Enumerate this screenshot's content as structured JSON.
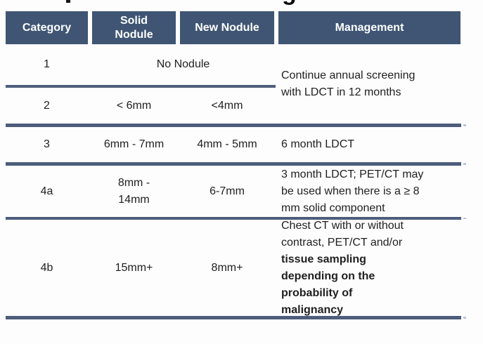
{
  "clipped_title": {
    "descender_fragment": "g"
  },
  "table": {
    "colors": {
      "header_bg": "#3F5573",
      "header_text": "#FFFFFF",
      "divider": "#4D5D7B",
      "body_text": "#1F1F1F"
    },
    "columns": [
      {
        "label": "Category"
      },
      {
        "label": "Solid Nodule"
      },
      {
        "label": "New Nodule"
      },
      {
        "label": "Management"
      }
    ],
    "rows": {
      "r1": {
        "category": "1",
        "nodule": "No Nodule"
      },
      "r2": {
        "category": "2",
        "solid_nodule": "< 6mm",
        "new_nodule": "<4mm"
      },
      "r1_r2_management": "Continue annual screening with LDCT in 12 months",
      "r3": {
        "category": "3",
        "solid_nodule": "6mm - 7mm",
        "new_nodule": "4mm - 5mm",
        "management": "6 month LDCT"
      },
      "r4a": {
        "category": "4a",
        "solid_nodule": "8mm - 14mm",
        "new_nodule": "6-7mm",
        "management": "3 month LDCT; PET/CT may be used when there is a ≥ 8 mm solid component"
      },
      "r4b": {
        "category": "4b",
        "solid_nodule": "15mm+",
        "new_nodule": "8mm+",
        "management_regular": "Chest CT with or without contrast, PET/CT and/or",
        "management_bold": "tissue sampling depending on the probability of malignancy"
      }
    }
  }
}
